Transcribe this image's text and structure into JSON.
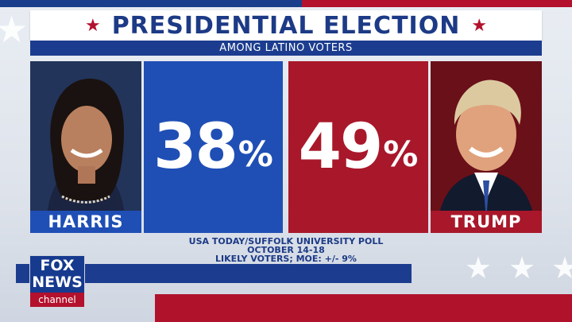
{
  "title": "PRESIDENTIAL ELECTION",
  "subtitle": "AMONG LATINO VOTERS",
  "candidates": [
    {
      "name": "HARRIS",
      "percent": "38",
      "color": "#1f4fb5"
    },
    {
      "name": "TRUMP",
      "percent": "49",
      "color": "#a8182a"
    }
  ],
  "percent_symbol": "%",
  "source": {
    "line1": "USA TODAY/SUFFOLK UNIVERSITY  POLL",
    "line2": "OCTOBER 14-18",
    "line3": "LIKELY VOTERS; MOE: +/- 9%"
  },
  "logo": {
    "line1": "FOX",
    "line2": "NEWS",
    "line3": "channel"
  },
  "icons": [
    "star-icon",
    "harris-photo",
    "trump-photo",
    "fox-news-logo"
  ],
  "colors": {
    "blue": "#1c3d8f",
    "red": "#b3112d",
    "white": "#ffffff"
  }
}
